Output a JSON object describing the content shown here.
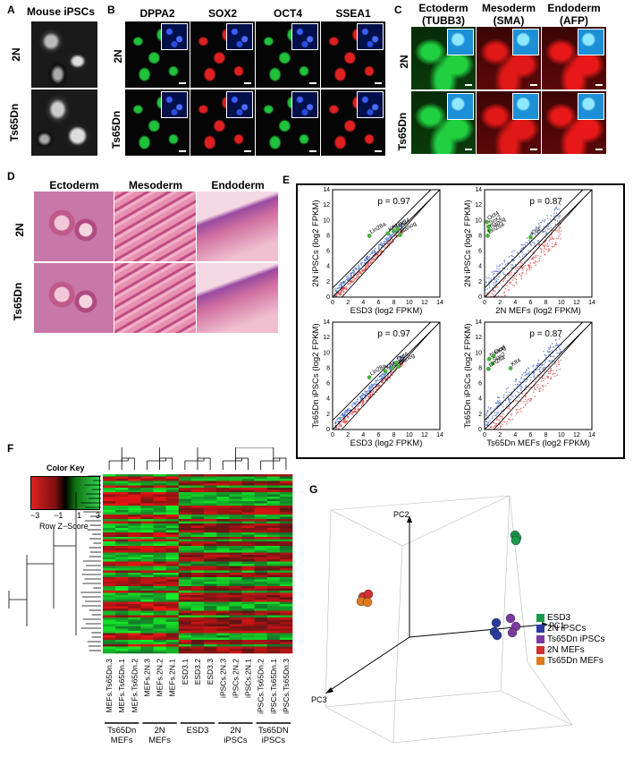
{
  "panels": {
    "A": {
      "label": "A",
      "title": "Mouse iPSCs",
      "rows": [
        "2N",
        "Ts65Dn"
      ]
    },
    "B": {
      "label": "B",
      "cols": [
        "DPPA2",
        "SOX2",
        "OCT4",
        "SSEA1"
      ],
      "rows": [
        "2N",
        "Ts65Dn"
      ],
      "colors": [
        "#1fc23a",
        "#e02020",
        "#1fc23a",
        "#e02020"
      ]
    },
    "C": {
      "label": "C",
      "cols": [
        {
          "l1": "Ectoderm",
          "l2": "(TUBB3)"
        },
        {
          "l1": "Mesoderm",
          "l2": "(SMA)"
        },
        {
          "l1": "Endoderm",
          "l2": "(AFP)"
        }
      ],
      "rows": [
        "2N",
        "Ts65Dn"
      ],
      "colors": [
        "#20d040",
        "#e01818",
        "#e81818"
      ]
    },
    "D": {
      "label": "D",
      "cols": [
        "Ectoderm",
        "Mesoderm",
        "Endoderm"
      ],
      "rows": [
        "2N",
        "Ts65Dn"
      ]
    },
    "E": {
      "label": "E"
    },
    "F": {
      "label": "F",
      "color_key": "Color Key",
      "key_ticks": [
        "−3",
        "−1",
        "1",
        "3"
      ],
      "key_sub": "Row Z−Score",
      "columns": [
        "MEFs.Ts65Dn.3",
        "MEFs.Ts65Dn.1",
        "MEFs.Ts65Dn.2",
        "MEFs.2N.3",
        "MEFs.2N.2",
        "MEFs.2N.1",
        "ESD3.1",
        "ESD3.2",
        "ESD3.3",
        "iPSCs.2N.3",
        "iPSCs.2N.2",
        "iPSCs.2N.1",
        "iPSCs.Ts65Dn.2",
        "iPSCs.Ts65Dn.1",
        "iPSCs.Ts65Dn.3"
      ],
      "groups": [
        {
          "l1": "Ts65Dn",
          "l2": "MEFs"
        },
        {
          "l1": "2N",
          "l2": "MEFs"
        },
        {
          "l1": "ESD3",
          "l2": ""
        },
        {
          "l1": "2N",
          "l2": "iPSCs"
        },
        {
          "l1": "Ts65DN",
          "l2": "iPSCs"
        }
      ]
    },
    "G": {
      "label": "G",
      "axes": [
        "PC1",
        "PC2",
        "PC3"
      ],
      "legend": [
        {
          "name": "ESD3",
          "color": "#1a9a4a"
        },
        {
          "name": "2N iPSCs",
          "color": "#2a3aa0"
        },
        {
          "name": "Ts65Dn iPSCs",
          "color": "#7a3aa0"
        },
        {
          "name": "2N MEFs",
          "color": "#d03030"
        },
        {
          "name": "Ts65Dn MEFs",
          "color": "#e07a20"
        }
      ]
    }
  },
  "chart_data": [
    {
      "type": "scatter",
      "title": "",
      "xlabel": "ESD3 (log2 FPKM)",
      "ylabel": "2N iPSCs (log2 FPKM)",
      "xlim": [
        0,
        14
      ],
      "ylim": [
        0,
        14
      ],
      "ticks": [
        0,
        2,
        4,
        6,
        8,
        10,
        12,
        14
      ],
      "annotation": "p = 0.97",
      "genes": [
        {
          "name": "Lin28a",
          "x": 4.8,
          "y": 8.0
        },
        {
          "name": "Klf4",
          "x": 7.2,
          "y": 8.3
        },
        {
          "name": "Sox2",
          "x": 8.0,
          "y": 8.6
        },
        {
          "name": "Oct4",
          "x": 8.5,
          "y": 8.9
        },
        {
          "name": "Nanog",
          "x": 8.8,
          "y": 8.1
        }
      ]
    },
    {
      "type": "scatter",
      "title": "",
      "xlabel": "2N MEFs (log2 FPKM)",
      "ylabel": "2N iPSCs (log2 FPKM)",
      "xlim": [
        0,
        14
      ],
      "ylim": [
        0,
        14
      ],
      "ticks": [
        0,
        2,
        4,
        6,
        8,
        10,
        12,
        14
      ],
      "annotation": "p = 0.87",
      "genes": [
        {
          "name": "Oct4",
          "x": 0.3,
          "y": 9.8
        },
        {
          "name": "Sox2",
          "x": 0.5,
          "y": 9.2
        },
        {
          "name": "Nanog",
          "x": 0.6,
          "y": 8.7
        },
        {
          "name": "Lin28a",
          "x": 0.4,
          "y": 8.0
        },
        {
          "name": "Klf4",
          "x": 6.0,
          "y": 7.8
        }
      ]
    },
    {
      "type": "scatter",
      "title": "",
      "xlabel": "ESD3 (log2 FPKM)",
      "ylabel": "Ts65Dn iPSCs (log2 FPKM)",
      "xlim": [
        0,
        14
      ],
      "ylim": [
        0,
        14
      ],
      "ticks": [
        0,
        2,
        4,
        6,
        8,
        10,
        12,
        14
      ],
      "annotation": "p = 0.97",
      "genes": [
        {
          "name": "Lin28a",
          "x": 4.8,
          "y": 6.8
        },
        {
          "name": "Klf4",
          "x": 6.9,
          "y": 7.6
        },
        {
          "name": "Sox2",
          "x": 7.8,
          "y": 8.0
        },
        {
          "name": "Oct4",
          "x": 8.3,
          "y": 8.7
        },
        {
          "name": "Nanog",
          "x": 8.6,
          "y": 8.2
        }
      ]
    },
    {
      "type": "scatter",
      "title": "",
      "xlabel": "Ts65Dn MEFs (log2 FPKM)",
      "ylabel": "Ts65Dn iPSCs (log2 FPKM)",
      "xlim": [
        0,
        14
      ],
      "ylim": [
        0,
        14
      ],
      "ticks": [
        0,
        2,
        4,
        6,
        8,
        10,
        12,
        14
      ],
      "annotation": "p = 0.87",
      "genes": [
        {
          "name": "Nanog",
          "x": 0.6,
          "y": 9.2
        },
        {
          "name": "Oct4",
          "x": 1.2,
          "y": 9.6
        },
        {
          "name": "Sox2",
          "x": 1.0,
          "y": 8.6
        },
        {
          "name": "Lin28a",
          "x": 0.5,
          "y": 7.9
        },
        {
          "name": "Klf4",
          "x": 3.4,
          "y": 8.0
        }
      ]
    }
  ]
}
